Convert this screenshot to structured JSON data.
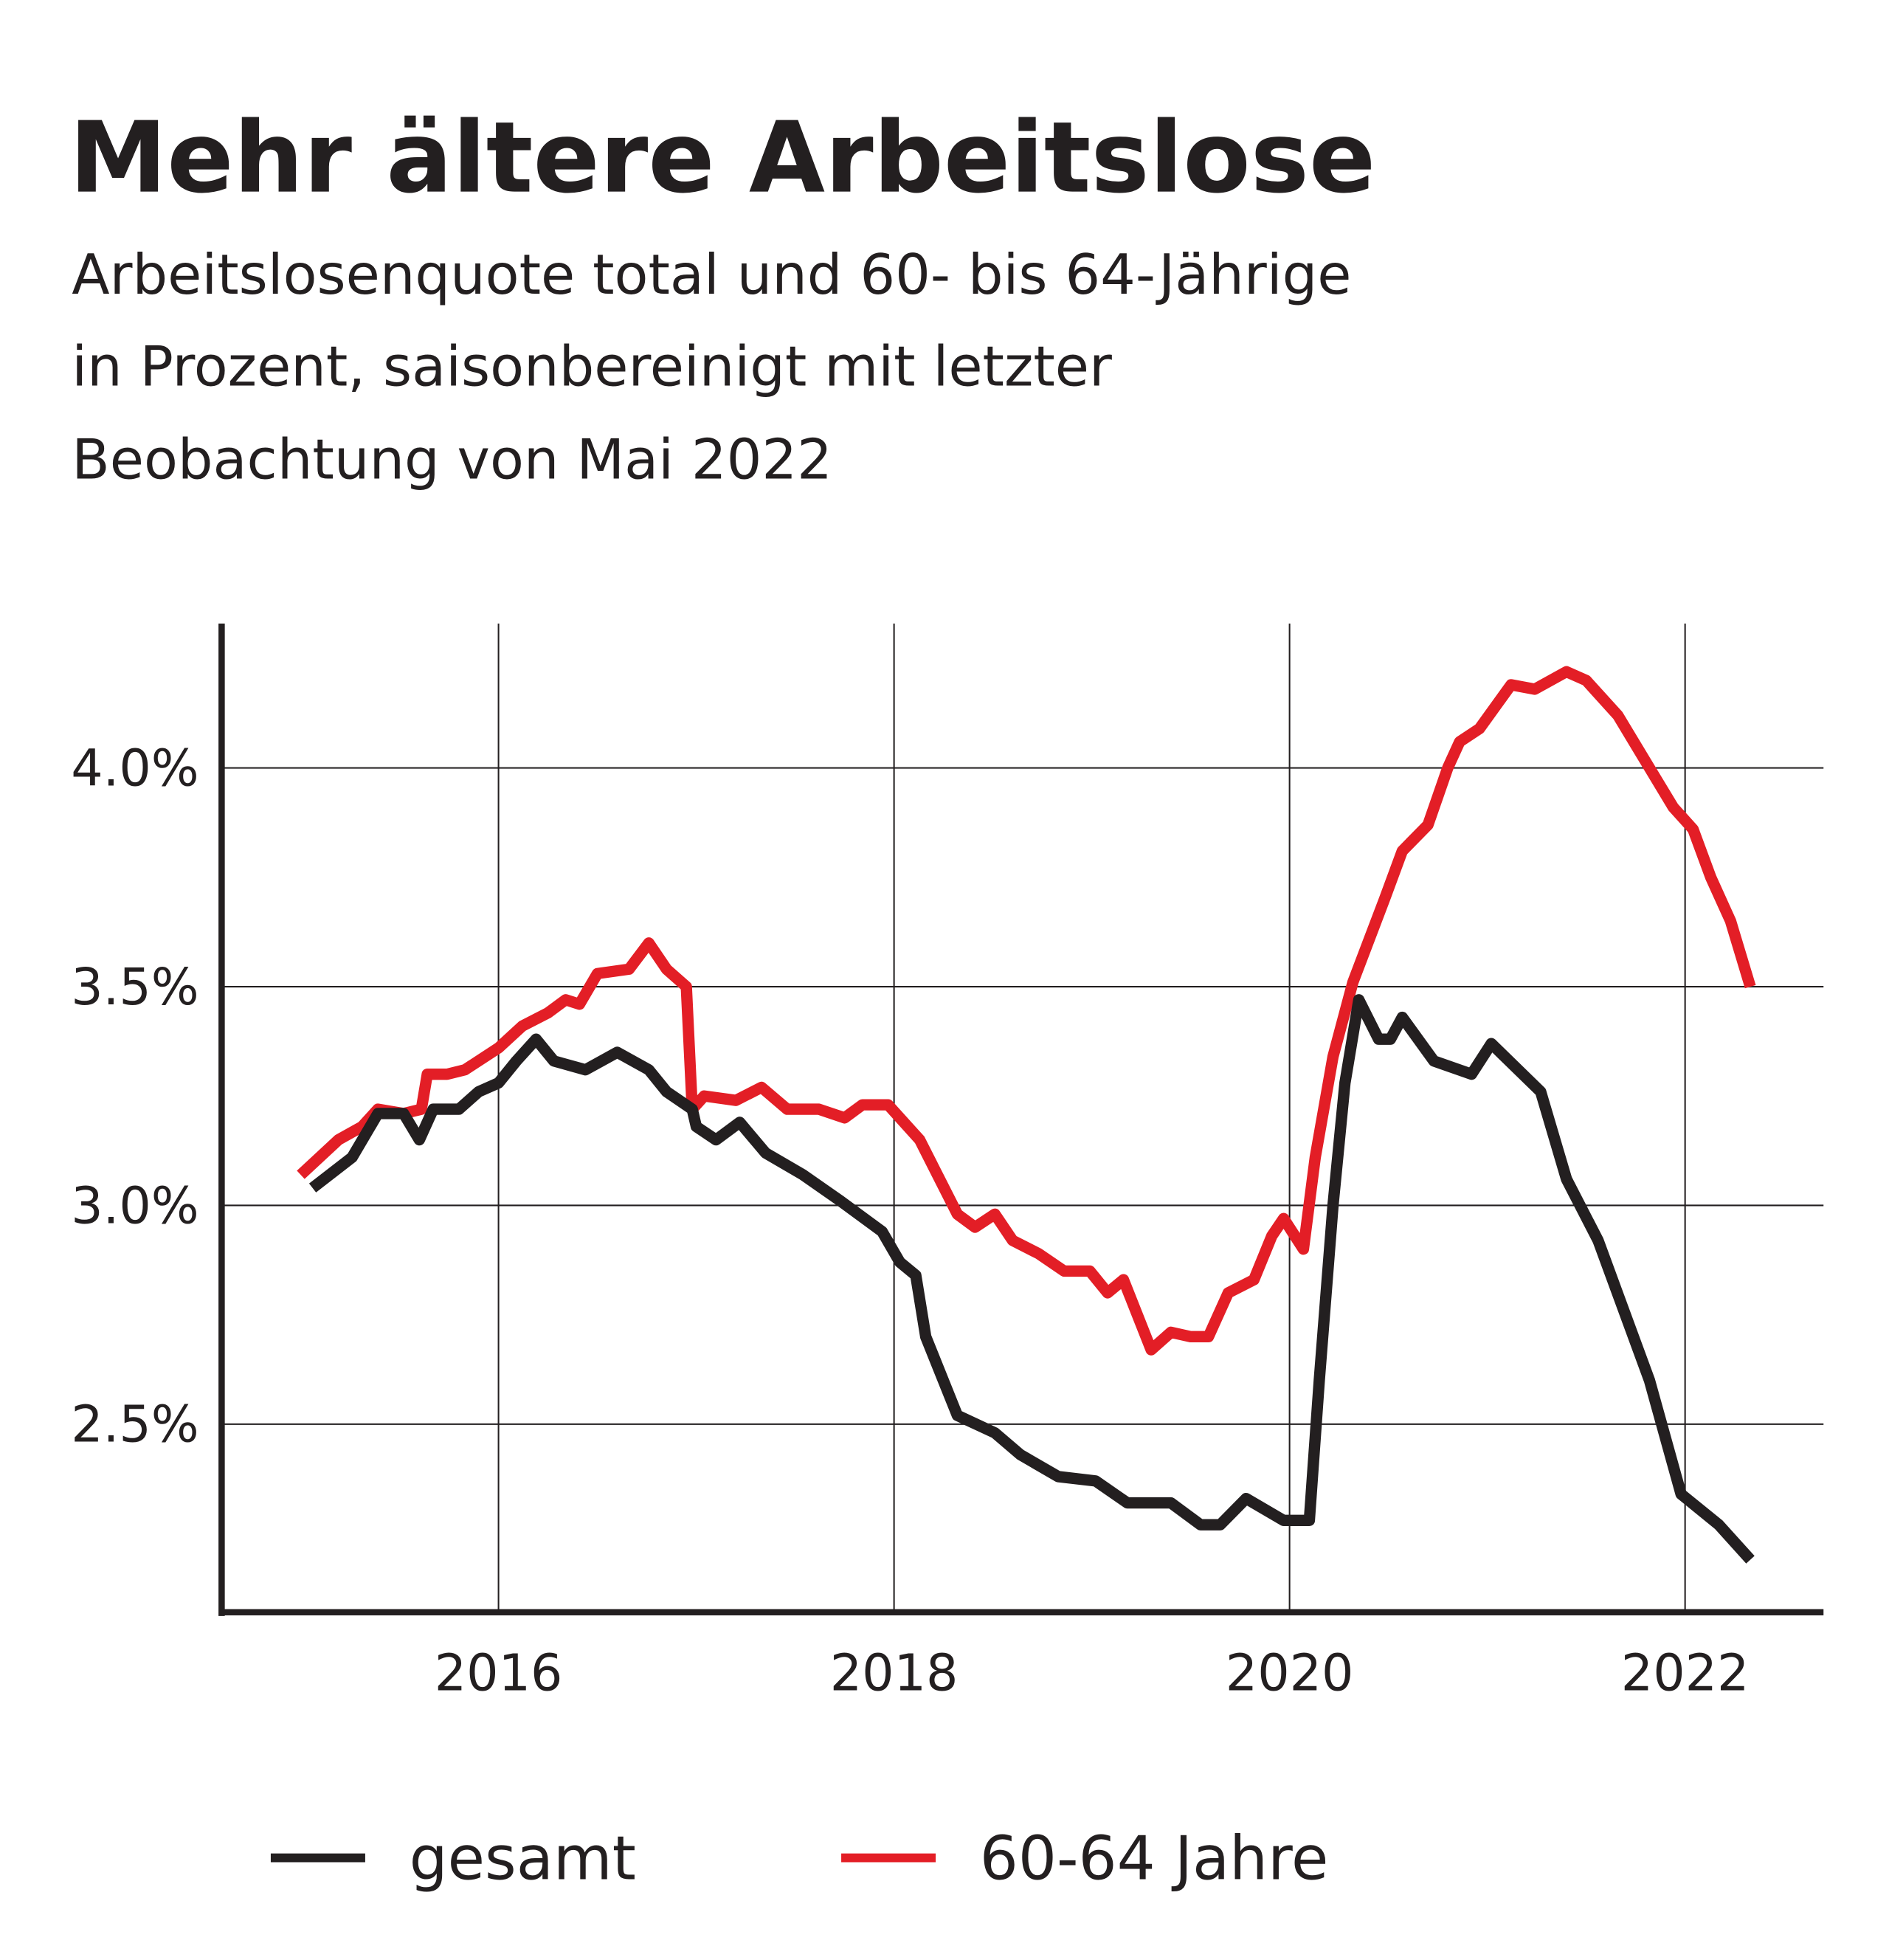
{
  "chart_data": {
    "type": "line",
    "title": "Mehr ältere Arbeitslose",
    "subtitle": [
      "Arbeitslosenquote total und 60- bis 64-Jährige",
      "in Prozent, saisonbereinigt mit letzter",
      "Beobachtung von Mai 2022"
    ],
    "xlim": [
      2014.6,
      2022.7
    ],
    "xticks": [
      2016,
      2018,
      2020,
      2022
    ],
    "ylim": [
      2.07,
      4.33
    ],
    "yticks": [
      {
        "value": 2.5,
        "label": "2.5%"
      },
      {
        "value": 3.0,
        "label": "3.0%"
      },
      {
        "value": 3.5,
        "label": "3.5%"
      },
      {
        "value": 4.0,
        "label": "4.0%"
      }
    ],
    "grid": true,
    "series": [
      {
        "name": "gesamt",
        "color": "#231f20",
        "x": [
          2015.06,
          2015.26,
          2015.39,
          2015.52,
          2015.6,
          2015.67,
          2015.8,
          2015.9,
          2016.0,
          2016.09,
          2016.19,
          2016.28,
          2016.44,
          2016.6,
          2016.76,
          2016.85,
          2016.98,
          2017.0,
          2017.1,
          2017.22,
          2017.35,
          2017.54,
          2017.73,
          2017.94,
          2018.03,
          2018.11,
          2018.16,
          2018.32,
          2018.51,
          2018.64,
          2018.83,
          2019.02,
          2019.18,
          2019.4,
          2019.55,
          2019.65,
          2019.78,
          2019.97,
          2020.1,
          2020.15,
          2020.22,
          2020.28,
          2020.35,
          2020.45,
          2020.51,
          2020.57,
          2020.73,
          2020.92,
          2021.02,
          2021.27,
          2021.4,
          2021.56,
          2021.82,
          2021.98,
          2022.17,
          2022.33
        ],
        "values": [
          3.04,
          3.11,
          3.21,
          3.21,
          3.15,
          3.22,
          3.22,
          3.26,
          3.28,
          3.33,
          3.38,
          3.33,
          3.31,
          3.35,
          3.31,
          3.26,
          3.22,
          3.18,
          3.15,
          3.19,
          3.12,
          3.07,
          3.01,
          2.94,
          2.87,
          2.84,
          2.7,
          2.52,
          2.48,
          2.43,
          2.38,
          2.37,
          2.32,
          2.32,
          2.27,
          2.27,
          2.33,
          2.28,
          2.28,
          2.6,
          3.0,
          3.28,
          3.47,
          3.38,
          3.38,
          3.43,
          3.33,
          3.3,
          3.37,
          3.26,
          3.06,
          2.92,
          2.6,
          2.34,
          2.27,
          2.19
        ]
      },
      {
        "name": "60-64 Jahre",
        "color": "#e31e26",
        "x": [
          2015.0,
          2015.19,
          2015.31,
          2015.39,
          2015.52,
          2015.61,
          2015.64,
          2015.74,
          2015.83,
          2016.0,
          2016.12,
          2016.25,
          2016.34,
          2016.41,
          2016.5,
          2016.66,
          2016.76,
          2016.85,
          2016.95,
          2016.98,
          2017.04,
          2017.2,
          2017.33,
          2017.46,
          2017.62,
          2017.75,
          2017.84,
          2017.97,
          2018.13,
          2018.32,
          2018.41,
          2018.51,
          2018.6,
          2018.73,
          2018.86,
          2018.99,
          2019.08,
          2019.16,
          2019.3,
          2019.4,
          2019.5,
          2019.59,
          2019.69,
          2019.82,
          2019.91,
          2019.97,
          2020.07,
          2020.13,
          2020.22,
          2020.32,
          2020.48,
          2020.57,
          2020.7,
          2020.8,
          2020.86,
          2020.96,
          2021.12,
          2021.24,
          2021.4,
          2021.5,
          2021.66,
          2021.82,
          2021.94,
          2022.04,
          2022.13,
          2022.23,
          2022.33
        ],
        "values": [
          3.07,
          3.15,
          3.18,
          3.22,
          3.21,
          3.22,
          3.3,
          3.3,
          3.31,
          3.36,
          3.41,
          3.44,
          3.47,
          3.46,
          3.53,
          3.54,
          3.6,
          3.54,
          3.5,
          3.22,
          3.25,
          3.24,
          3.27,
          3.22,
          3.22,
          3.2,
          3.23,
          3.23,
          3.15,
          2.98,
          2.95,
          2.98,
          2.92,
          2.89,
          2.85,
          2.85,
          2.8,
          2.83,
          2.67,
          2.71,
          2.7,
          2.7,
          2.8,
          2.83,
          2.93,
          2.97,
          2.9,
          3.11,
          3.34,
          3.51,
          3.7,
          3.81,
          3.87,
          4.0,
          4.06,
          4.09,
          4.19,
          4.18,
          4.22,
          4.2,
          4.12,
          4.0,
          3.91,
          3.86,
          3.75,
          3.65,
          3.5
        ]
      }
    ]
  }
}
